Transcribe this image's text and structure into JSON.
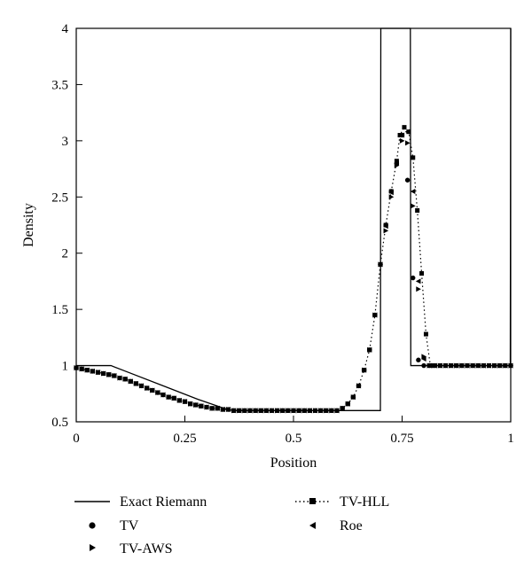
{
  "chart_data": {
    "type": "line",
    "xlabel": "Position",
    "ylabel": "Density",
    "xlim": [
      0,
      1
    ],
    "ylim": [
      0.5,
      4
    ],
    "xticks": [
      "0",
      "0.25",
      "0.5",
      "0.75",
      "1"
    ],
    "yticks": [
      "0.5",
      "1",
      "1.5",
      "2",
      "2.5",
      "3",
      "3.5",
      "4"
    ],
    "grid": false,
    "legend_position": "bottom",
    "series": [
      {
        "name": "Exact Riemann",
        "style": "solid-line",
        "x": [
          0,
          0.07,
          0.08,
          0.12,
          0.2,
          0.28,
          0.34,
          0.36,
          0.699,
          0.7,
          0.701,
          0.768,
          0.769,
          0.77,
          0.999,
          1.0
        ],
        "y": [
          1.0,
          1.0,
          1.0,
          0.94,
          0.82,
          0.7,
          0.62,
          0.6,
          0.6,
          0.6,
          4.0,
          4.0,
          4.0,
          1.0,
          1.0,
          4.0
        ]
      },
      {
        "name": "TV",
        "marker": "circle",
        "x": [
          0.0,
          0.0125,
          0.025,
          0.0375,
          0.05,
          0.0625,
          0.075,
          0.0875,
          0.1,
          0.1125,
          0.125,
          0.1375,
          0.15,
          0.1625,
          0.175,
          0.1875,
          0.2,
          0.2125,
          0.225,
          0.2375,
          0.25,
          0.2625,
          0.275,
          0.2875,
          0.3,
          0.3125,
          0.325,
          0.3375,
          0.35,
          0.3625,
          0.375,
          0.3875,
          0.4,
          0.4125,
          0.425,
          0.4375,
          0.45,
          0.4625,
          0.475,
          0.4875,
          0.5,
          0.5125,
          0.525,
          0.5375,
          0.55,
          0.5625,
          0.575,
          0.5875,
          0.6,
          0.6125,
          0.625,
          0.6375,
          0.65,
          0.6625,
          0.675,
          0.6875,
          0.7,
          0.7125,
          0.725,
          0.7375,
          0.75,
          0.7625,
          0.775,
          0.7875,
          0.8,
          0.8125,
          0.825,
          0.8375,
          0.85,
          0.8625,
          0.875,
          0.8875,
          0.9,
          0.9125,
          0.925,
          0.9375,
          0.95,
          0.9625,
          0.975,
          0.9875,
          1.0
        ],
        "y": [
          0.98,
          0.97,
          0.96,
          0.95,
          0.94,
          0.93,
          0.92,
          0.91,
          0.89,
          0.88,
          0.86,
          0.84,
          0.82,
          0.8,
          0.78,
          0.76,
          0.74,
          0.72,
          0.71,
          0.69,
          0.68,
          0.66,
          0.65,
          0.64,
          0.63,
          0.62,
          0.62,
          0.61,
          0.61,
          0.6,
          0.6,
          0.6,
          0.6,
          0.6,
          0.6,
          0.6,
          0.6,
          0.6,
          0.6,
          0.6,
          0.6,
          0.6,
          0.6,
          0.6,
          0.6,
          0.6,
          0.6,
          0.6,
          0.6,
          0.62,
          0.66,
          0.72,
          0.82,
          0.96,
          1.14,
          1.45,
          1.9,
          2.25,
          2.55,
          2.8,
          3.05,
          2.65,
          1.78,
          1.05,
          1.0,
          1.0,
          1.0,
          1.0,
          1.0,
          1.0,
          1.0,
          1.0,
          1.0,
          1.0,
          1.0,
          1.0,
          1.0,
          1.0,
          1.0,
          1.0,
          1.0
        ]
      },
      {
        "name": "TV-HLL",
        "marker": "square",
        "style": "dotted-line",
        "x": [
          0.0,
          0.0125,
          0.025,
          0.0375,
          0.05,
          0.0625,
          0.075,
          0.0875,
          0.1,
          0.1125,
          0.125,
          0.1375,
          0.15,
          0.1625,
          0.175,
          0.1875,
          0.2,
          0.2125,
          0.225,
          0.2375,
          0.25,
          0.2625,
          0.275,
          0.2875,
          0.3,
          0.3125,
          0.325,
          0.3375,
          0.35,
          0.3625,
          0.375,
          0.3875,
          0.4,
          0.4125,
          0.425,
          0.4375,
          0.45,
          0.4625,
          0.475,
          0.4875,
          0.5,
          0.5125,
          0.525,
          0.5375,
          0.55,
          0.5625,
          0.575,
          0.5875,
          0.6,
          0.6125,
          0.625,
          0.6375,
          0.65,
          0.6625,
          0.675,
          0.6875,
          0.7,
          0.7125,
          0.725,
          0.7375,
          0.745,
          0.755,
          0.765,
          0.775,
          0.785,
          0.795,
          0.805,
          0.815,
          0.825,
          0.8375,
          0.85,
          0.8625,
          0.875,
          0.8875,
          0.9,
          0.9125,
          0.925,
          0.9375,
          0.95,
          0.9625,
          0.975,
          0.9875,
          1.0
        ],
        "y": [
          0.98,
          0.97,
          0.96,
          0.95,
          0.94,
          0.93,
          0.92,
          0.91,
          0.89,
          0.88,
          0.86,
          0.84,
          0.82,
          0.8,
          0.78,
          0.76,
          0.74,
          0.72,
          0.71,
          0.69,
          0.68,
          0.66,
          0.65,
          0.64,
          0.63,
          0.62,
          0.62,
          0.61,
          0.61,
          0.6,
          0.6,
          0.6,
          0.6,
          0.6,
          0.6,
          0.6,
          0.6,
          0.6,
          0.6,
          0.6,
          0.6,
          0.6,
          0.6,
          0.6,
          0.6,
          0.6,
          0.6,
          0.6,
          0.6,
          0.62,
          0.66,
          0.72,
          0.82,
          0.96,
          1.14,
          1.45,
          1.9,
          2.25,
          2.55,
          2.82,
          3.05,
          3.12,
          3.08,
          2.85,
          2.38,
          1.82,
          1.28,
          1.0,
          1.0,
          1.0,
          1.0,
          1.0,
          1.0,
          1.0,
          1.0,
          1.0,
          1.0,
          1.0,
          1.0,
          1.0,
          1.0,
          1.0,
          1.0
        ]
      },
      {
        "name": "TV-AWS",
        "marker": "triangle-right",
        "x": [
          0.0,
          0.0125,
          0.025,
          0.0375,
          0.05,
          0.0625,
          0.075,
          0.0875,
          0.1,
          0.1125,
          0.125,
          0.1375,
          0.15,
          0.1625,
          0.175,
          0.1875,
          0.2,
          0.2125,
          0.225,
          0.2375,
          0.25,
          0.2625,
          0.275,
          0.2875,
          0.3,
          0.3125,
          0.325,
          0.3375,
          0.35,
          0.3625,
          0.375,
          0.3875,
          0.4,
          0.4125,
          0.425,
          0.4375,
          0.45,
          0.4625,
          0.475,
          0.4875,
          0.5,
          0.5125,
          0.525,
          0.5375,
          0.55,
          0.5625,
          0.575,
          0.5875,
          0.6,
          0.6125,
          0.625,
          0.6375,
          0.65,
          0.6625,
          0.675,
          0.6875,
          0.7,
          0.7125,
          0.725,
          0.7375,
          0.75,
          0.7625,
          0.775,
          0.7875,
          0.8,
          0.8125,
          0.825,
          0.8375,
          0.85,
          0.8625,
          0.875,
          0.8875,
          0.9,
          0.9125,
          0.925,
          0.9375,
          0.95,
          0.9625,
          0.975,
          0.9875,
          1.0
        ],
        "y": [
          0.98,
          0.97,
          0.96,
          0.95,
          0.94,
          0.93,
          0.92,
          0.91,
          0.89,
          0.88,
          0.86,
          0.84,
          0.82,
          0.8,
          0.78,
          0.76,
          0.74,
          0.72,
          0.71,
          0.69,
          0.68,
          0.66,
          0.65,
          0.64,
          0.63,
          0.62,
          0.62,
          0.61,
          0.61,
          0.6,
          0.6,
          0.6,
          0.6,
          0.6,
          0.6,
          0.6,
          0.6,
          0.6,
          0.6,
          0.6,
          0.6,
          0.6,
          0.6,
          0.6,
          0.6,
          0.6,
          0.6,
          0.6,
          0.6,
          0.62,
          0.66,
          0.72,
          0.82,
          0.96,
          1.14,
          1.45,
          1.9,
          2.2,
          2.5,
          2.78,
          3.0,
          2.98,
          2.42,
          1.68,
          1.08,
          1.0,
          1.0,
          1.0,
          1.0,
          1.0,
          1.0,
          1.0,
          1.0,
          1.0,
          1.0,
          1.0,
          1.0,
          1.0,
          1.0,
          1.0,
          1.0
        ]
      },
      {
        "name": "Roe",
        "marker": "triangle-left",
        "x": [
          0.0,
          0.0125,
          0.025,
          0.0375,
          0.05,
          0.0625,
          0.075,
          0.0875,
          0.1,
          0.1125,
          0.125,
          0.1375,
          0.15,
          0.1625,
          0.175,
          0.1875,
          0.2,
          0.2125,
          0.225,
          0.2375,
          0.25,
          0.2625,
          0.275,
          0.2875,
          0.3,
          0.3125,
          0.325,
          0.3375,
          0.35,
          0.3625,
          0.375,
          0.3875,
          0.4,
          0.4125,
          0.425,
          0.4375,
          0.45,
          0.4625,
          0.475,
          0.4875,
          0.5,
          0.5125,
          0.525,
          0.5375,
          0.55,
          0.5625,
          0.575,
          0.5875,
          0.6,
          0.6125,
          0.625,
          0.6375,
          0.65,
          0.6625,
          0.675,
          0.6875,
          0.7,
          0.7125,
          0.725,
          0.7375,
          0.75,
          0.7625,
          0.775,
          0.7875,
          0.8,
          0.8125,
          0.825,
          0.8375,
          0.85,
          0.8625,
          0.875,
          0.8875,
          0.9,
          0.9125,
          0.925,
          0.9375,
          0.95,
          0.9625,
          0.975,
          0.9875,
          1.0
        ],
        "y": [
          0.98,
          0.97,
          0.96,
          0.95,
          0.94,
          0.93,
          0.92,
          0.91,
          0.89,
          0.88,
          0.86,
          0.84,
          0.82,
          0.8,
          0.78,
          0.76,
          0.74,
          0.72,
          0.71,
          0.69,
          0.68,
          0.66,
          0.65,
          0.64,
          0.63,
          0.62,
          0.62,
          0.61,
          0.61,
          0.6,
          0.6,
          0.6,
          0.6,
          0.6,
          0.6,
          0.6,
          0.6,
          0.6,
          0.6,
          0.6,
          0.6,
          0.6,
          0.6,
          0.6,
          0.6,
          0.6,
          0.6,
          0.6,
          0.6,
          0.62,
          0.66,
          0.72,
          0.82,
          0.96,
          1.14,
          1.45,
          1.9,
          2.24,
          2.54,
          2.8,
          3.05,
          3.08,
          2.55,
          1.75,
          1.06,
          1.0,
          1.0,
          1.0,
          1.0,
          1.0,
          1.0,
          1.0,
          1.0,
          1.0,
          1.0,
          1.0,
          1.0,
          1.0,
          1.0,
          1.0,
          1.0
        ]
      }
    ]
  },
  "legend": {
    "exact": "Exact Riemann",
    "tv": "TV",
    "tv_aws": "TV-AWS",
    "tv_hll": "TV-HLL",
    "roe": "Roe"
  }
}
